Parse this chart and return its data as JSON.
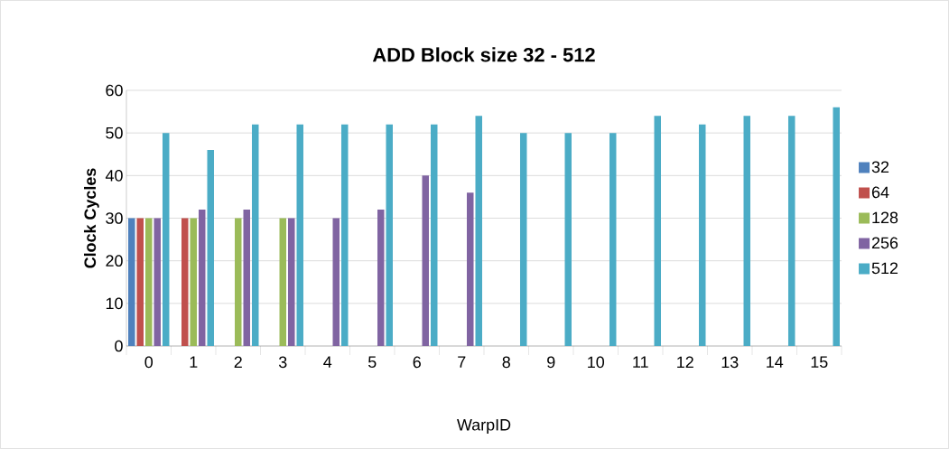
{
  "chart_data": {
    "type": "bar",
    "title": "ADD Block size 32 -  512",
    "xlabel": "WarpID",
    "ylabel": "Clock Cycles",
    "categories": [
      "0",
      "1",
      "2",
      "3",
      "4",
      "5",
      "6",
      "7",
      "8",
      "9",
      "10",
      "11",
      "12",
      "13",
      "14",
      "15"
    ],
    "series": [
      {
        "name": "32",
        "color": "#4f81bd",
        "values": [
          30,
          null,
          null,
          null,
          null,
          null,
          null,
          null,
          null,
          null,
          null,
          null,
          null,
          null,
          null,
          null
        ]
      },
      {
        "name": "64",
        "color": "#c0504d",
        "values": [
          30,
          30,
          null,
          null,
          null,
          null,
          null,
          null,
          null,
          null,
          null,
          null,
          null,
          null,
          null,
          null
        ]
      },
      {
        "name": "128",
        "color": "#9bbb59",
        "values": [
          30,
          30,
          30,
          30,
          null,
          null,
          null,
          null,
          null,
          null,
          null,
          null,
          null,
          null,
          null,
          null
        ]
      },
      {
        "name": "256",
        "color": "#8064a2",
        "values": [
          30,
          32,
          32,
          30,
          30,
          32,
          40,
          36,
          null,
          null,
          null,
          null,
          null,
          null,
          null,
          null
        ]
      },
      {
        "name": "512",
        "color": "#4bacc6",
        "values": [
          50,
          46,
          52,
          52,
          52,
          52,
          52,
          54,
          50,
          50,
          50,
          54,
          52,
          54,
          54,
          56
        ]
      }
    ],
    "ylim": [
      0,
      60
    ],
    "yticks": [
      0,
      10,
      20,
      30,
      40,
      50,
      60
    ],
    "grid": "y",
    "legend": "right"
  }
}
